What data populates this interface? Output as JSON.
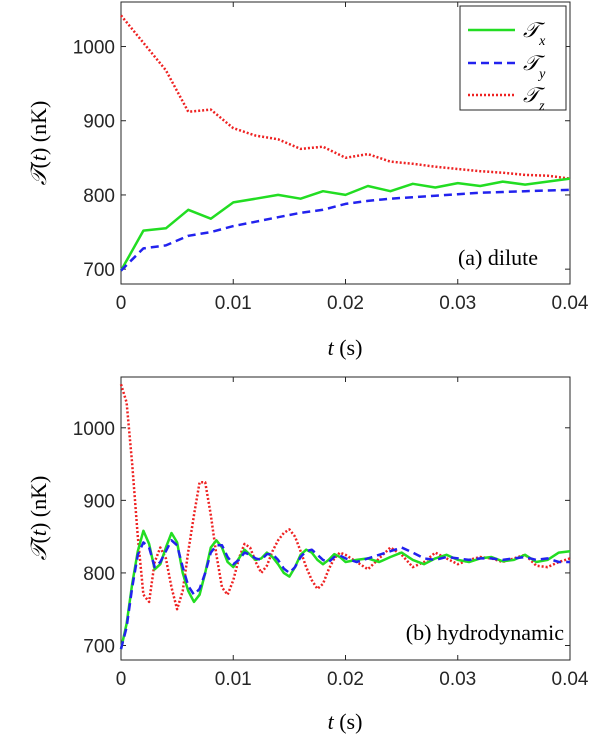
{
  "chart_data": [
    {
      "type": "line",
      "panel": "a",
      "annotation": "(a) dilute",
      "xlabel_var": "t",
      "xlabel_unit": " (s)",
      "ylabel": "T(t) (nK)",
      "xlim": [
        0,
        0.04
      ],
      "ylim": [
        680,
        1060
      ],
      "xticks": [
        "0",
        "0.01",
        "0.02",
        "0.03",
        "0.04"
      ],
      "yticks": [
        "700",
        "800",
        "900",
        "1000"
      ],
      "grid": false,
      "legend": "top-right",
      "x": [
        0,
        0.002,
        0.004,
        0.006,
        0.008,
        0.01,
        0.012,
        0.014,
        0.016,
        0.018,
        0.02,
        0.022,
        0.024,
        0.026,
        0.028,
        0.03,
        0.032,
        0.034,
        0.036,
        0.038,
        0.04
      ],
      "series": [
        {
          "name": "Tx",
          "values": [
            698,
            752,
            755,
            780,
            768,
            790,
            795,
            800,
            795,
            805,
            800,
            812,
            805,
            815,
            810,
            816,
            812,
            818,
            814,
            818,
            822
          ]
        },
        {
          "name": "Ty",
          "values": [
            698,
            728,
            732,
            745,
            750,
            758,
            764,
            770,
            776,
            780,
            788,
            792,
            795,
            797,
            799,
            801,
            803,
            804,
            805,
            806,
            807
          ]
        },
        {
          "name": "Tz",
          "values": [
            1042,
            1005,
            968,
            912,
            915,
            890,
            880,
            875,
            862,
            865,
            850,
            855,
            845,
            842,
            838,
            835,
            832,
            830,
            827,
            826,
            822
          ]
        }
      ]
    },
    {
      "type": "line",
      "panel": "b",
      "annotation": "(b) hydrodynamic",
      "xlabel_var": "t",
      "xlabel_unit": " (s)",
      "ylabel": "T(t) (nK)",
      "xlim": [
        0,
        0.04
      ],
      "ylim": [
        680,
        1070
      ],
      "xticks": [
        "0",
        "0.01",
        "0.02",
        "0.03",
        "0.04"
      ],
      "yticks": [
        "700",
        "800",
        "900",
        "1000"
      ],
      "grid": false,
      "x": [
        0,
        0.0005,
        0.001,
        0.0015,
        0.002,
        0.0025,
        0.003,
        0.0035,
        0.004,
        0.0045,
        0.005,
        0.0055,
        0.006,
        0.0065,
        0.007,
        0.0075,
        0.008,
        0.0085,
        0.009,
        0.0095,
        0.01,
        0.0105,
        0.011,
        0.0115,
        0.012,
        0.0125,
        0.013,
        0.0135,
        0.014,
        0.0145,
        0.015,
        0.0155,
        0.016,
        0.0165,
        0.017,
        0.0175,
        0.018,
        0.0185,
        0.019,
        0.0195,
        0.02,
        0.021,
        0.022,
        0.023,
        0.024,
        0.025,
        0.026,
        0.027,
        0.028,
        0.029,
        0.03,
        0.031,
        0.032,
        0.033,
        0.034,
        0.035,
        0.036,
        0.037,
        0.038,
        0.039,
        0.04
      ],
      "series": [
        {
          "name": "Tx",
          "values": [
            695,
            730,
            785,
            830,
            858,
            840,
            805,
            812,
            835,
            855,
            842,
            800,
            775,
            760,
            770,
            800,
            835,
            845,
            835,
            815,
            808,
            820,
            832,
            825,
            818,
            820,
            828,
            822,
            812,
            800,
            795,
            808,
            825,
            832,
            828,
            818,
            812,
            818,
            826,
            822,
            815,
            818,
            820,
            815,
            822,
            828,
            818,
            812,
            820,
            825,
            818,
            815,
            820,
            822,
            816,
            818,
            825,
            815,
            818,
            828,
            830
          ]
        },
        {
          "name": "Ty",
          "values": [
            695,
            725,
            780,
            825,
            842,
            835,
            808,
            815,
            830,
            845,
            838,
            808,
            782,
            770,
            778,
            800,
            828,
            838,
            838,
            822,
            812,
            818,
            828,
            825,
            820,
            818,
            826,
            826,
            818,
            806,
            800,
            808,
            822,
            830,
            832,
            825,
            818,
            815,
            822,
            824,
            820,
            815,
            820,
            825,
            830,
            835,
            828,
            820,
            818,
            822,
            820,
            818,
            820,
            820,
            818,
            820,
            822,
            818,
            820,
            815,
            815
          ]
        },
        {
          "name": "Tz",
          "values": [
            1060,
            1035,
            950,
            850,
            770,
            760,
            815,
            835,
            820,
            780,
            750,
            775,
            830,
            880,
            925,
            925,
            880,
            825,
            780,
            770,
            790,
            820,
            840,
            835,
            815,
            800,
            810,
            830,
            845,
            855,
            860,
            850,
            830,
            808,
            790,
            778,
            785,
            805,
            820,
            828,
            825,
            815,
            805,
            820,
            835,
            825,
            808,
            815,
            828,
            820,
            812,
            818,
            822,
            820,
            815,
            820,
            825,
            810,
            808,
            815,
            820
          ]
        }
      ]
    }
  ],
  "colors": {
    "Tx": "#22dd22",
    "Ty": "#2222ee",
    "Tz": "#ee2222",
    "axis": "#262626"
  }
}
